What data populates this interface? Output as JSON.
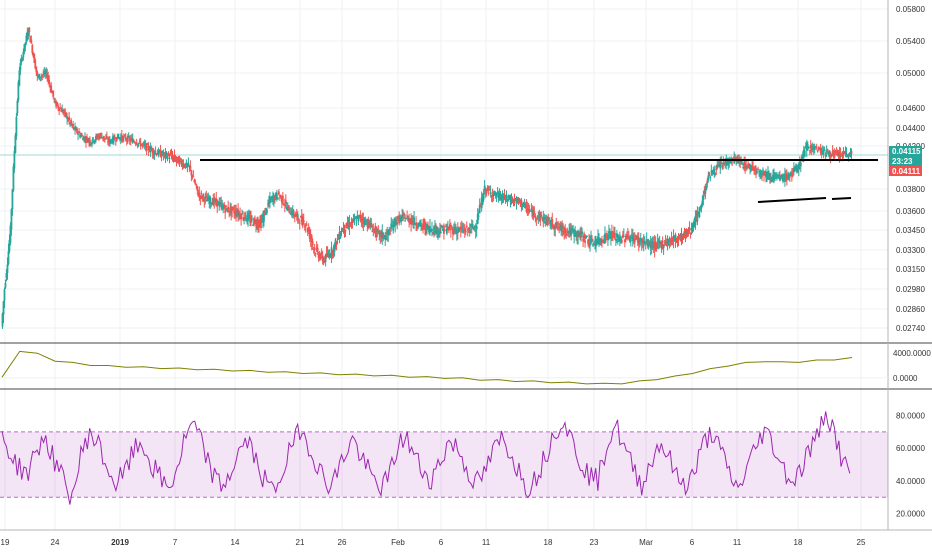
{
  "chart_data": [
    {
      "type": "line",
      "panel": "price",
      "style": "candlestick",
      "y_ticks": [
        "0.05800",
        "0.05400",
        "0.05000",
        "0.04600",
        "0.04400",
        "0.04200",
        "0.03800",
        "0.03600",
        "0.03450",
        "0.03300",
        "0.03150",
        "0.02980",
        "0.02860",
        "0.02740"
      ],
      "x_ticks": [
        "19",
        "24",
        "2019",
        "7",
        "14",
        "21",
        "26",
        "Feb",
        "6",
        "11",
        "18",
        "23",
        "Mar",
        "6",
        "11",
        "18",
        "25"
      ],
      "price_labels": [
        {
          "text": "0.04115",
          "color": "#26a69a"
        },
        {
          "text": "23:23",
          "color": "#26a69a"
        },
        {
          "text": "0.04111",
          "color": "#ef5350"
        }
      ],
      "ylim": [
        0.0272,
        0.0585
      ],
      "x_range_days": [
        0,
        99
      ],
      "series": [
        {
          "x": [
            0,
            1,
            2,
            3,
            4,
            5,
            6,
            7,
            8,
            9,
            10,
            11,
            12,
            13,
            14,
            15,
            16,
            17,
            18,
            19,
            20,
            21,
            22,
            23,
            24,
            25,
            26,
            27,
            28,
            29,
            30,
            31,
            32,
            33,
            34,
            35,
            36,
            37,
            38,
            39,
            40,
            41,
            42,
            43,
            44,
            45,
            46,
            47,
            48,
            49,
            50,
            51,
            52,
            53,
            54,
            55,
            56,
            57,
            58,
            59,
            60,
            61,
            62,
            63,
            64,
            65,
            66,
            67,
            68,
            69,
            70,
            71,
            72,
            73,
            74,
            75,
            76,
            77,
            78,
            79,
            80,
            81,
            82,
            83,
            84,
            85,
            86,
            87,
            88,
            89,
            90,
            91,
            92,
            93,
            94,
            95
          ],
          "values": [
            0.0275,
            0.0345,
            0.0505,
            0.0555,
            0.0495,
            0.05,
            0.0465,
            0.0455,
            0.044,
            0.043,
            0.0425,
            0.0432,
            0.0425,
            0.043,
            0.0428,
            0.0425,
            0.042,
            0.0415,
            0.0412,
            0.041,
            0.0405,
            0.04,
            0.0375,
            0.037,
            0.0368,
            0.0362,
            0.036,
            0.0356,
            0.0352,
            0.035,
            0.037,
            0.0375,
            0.0362,
            0.0355,
            0.035,
            0.033,
            0.0322,
            0.033,
            0.0345,
            0.035,
            0.0355,
            0.035,
            0.0342,
            0.034,
            0.0352,
            0.0355,
            0.0352,
            0.0348,
            0.0346,
            0.0345,
            0.0346,
            0.0345,
            0.0345,
            0.0348,
            0.038,
            0.0375,
            0.0372,
            0.037,
            0.0368,
            0.036,
            0.0356,
            0.0352,
            0.0348,
            0.0345,
            0.0343,
            0.034,
            0.0335,
            0.0338,
            0.0342,
            0.0338,
            0.034,
            0.0338,
            0.0335,
            0.0333,
            0.0335,
            0.0338,
            0.034,
            0.0345,
            0.036,
            0.0392,
            0.04,
            0.0405,
            0.0408,
            0.0402,
            0.04,
            0.0395,
            0.0392,
            0.039,
            0.0392,
            0.04,
            0.042,
            0.0418,
            0.0414,
            0.0412,
            0.0412,
            0.0412
          ]
        }
      ],
      "annotations": [
        "horizontal-resistance-line",
        "rising-support-line-1",
        "rising-support-line-2"
      ]
    },
    {
      "type": "line",
      "panel": "indicator-1",
      "y_ticks": [
        "4000.0000",
        "0.0000"
      ],
      "ylim": [
        -1500,
        5500
      ],
      "series": [
        {
          "color": "#808000",
          "values": [
            0,
            4400,
            3900,
            2800,
            2400,
            2100,
            1900,
            1800,
            1700,
            1600,
            1500,
            1400,
            1300,
            1200,
            1100,
            1000,
            900,
            800,
            700,
            600,
            500,
            400,
            300,
            200,
            100,
            0,
            -100,
            -300,
            -400,
            -500,
            -600,
            -700,
            -800,
            -900,
            -1000,
            -900,
            -600,
            -200,
            200,
            800,
            1400,
            2000,
            2400,
            2700,
            2500,
            2600,
            2800,
            3000,
            3200
          ]
        }
      ]
    },
    {
      "type": "line",
      "panel": "rsi",
      "y_ticks": [
        "80.0000",
        "60.0000",
        "40.0000",
        "20.0000"
      ],
      "ylim": [
        10,
        95
      ],
      "band": [
        30,
        70
      ],
      "series": [
        {
          "color": "#9c27b0",
          "values": [
            70,
            55,
            48,
            45,
            60,
            66,
            52,
            40,
            30,
            55,
            70,
            62,
            48,
            38,
            45,
            58,
            63,
            50,
            42,
            35,
            48,
            68,
            74,
            59,
            45,
            36,
            44,
            57,
            65,
            52,
            40,
            33,
            46,
            60,
            72,
            62,
            50,
            38,
            42,
            55,
            66,
            54,
            44,
            36,
            40,
            58,
            68,
            56,
            46,
            41,
            52,
            64,
            60,
            48,
            38,
            44,
            57,
            66,
            58,
            46,
            36,
            43,
            55,
            70,
            78,
            65,
            52,
            44,
            40,
            62,
            75,
            60,
            48,
            38,
            50,
            64,
            56,
            42,
            38,
            45,
            62,
            70,
            58,
            45,
            34,
            48,
            60,
            72,
            62,
            50,
            40,
            45,
            58,
            66,
            84,
            70,
            50,
            45
          ]
        }
      ]
    }
  ]
}
